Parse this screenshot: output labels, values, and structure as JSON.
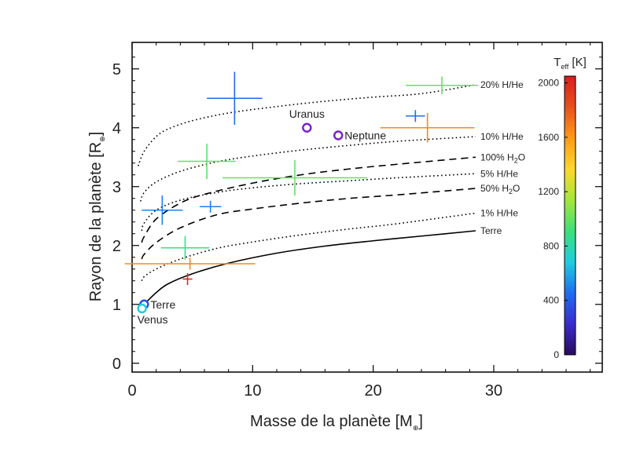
{
  "chart_data": {
    "type": "scatter",
    "xlabel": "Masse de la planète [M⊕]",
    "ylabel": "Rayon de la planète [R⊕]",
    "xlim": [
      0,
      39
    ],
    "ylim": [
      -0.15,
      5.45
    ],
    "x_ticks": [
      0,
      10,
      20,
      30
    ],
    "y_ticks": [
      0,
      1,
      2,
      3,
      4,
      5
    ],
    "colorbar": {
      "title": "T",
      "title_subscript": "eff",
      "title_unit": "[K]",
      "range": [
        0,
        2050
      ],
      "ticks": [
        0,
        400,
        800,
        1200,
        1600,
        2000
      ],
      "colors": [
        "#2a0a5a",
        "#3a2bd0",
        "#1d6ff0",
        "#1ecde0",
        "#3be07a",
        "#a5e63a",
        "#ffd82a",
        "#ff9a16",
        "#e8501c",
        "#d81e1e"
      ]
    },
    "curves": [
      {
        "name": "20% H/He",
        "style": "dotted",
        "label_parts": {
          "pre": "20% H/He"
        },
        "points": [
          [
            0.5,
            3.35
          ],
          [
            1,
            3.6
          ],
          [
            2,
            3.85
          ],
          [
            3,
            3.98
          ],
          [
            5,
            4.12
          ],
          [
            8,
            4.25
          ],
          [
            12,
            4.36
          ],
          [
            16,
            4.45
          ],
          [
            20,
            4.52
          ],
          [
            24,
            4.58
          ],
          [
            28.5,
            4.73
          ]
        ]
      },
      {
        "name": "10% H/He",
        "style": "dotted",
        "label_parts": {
          "pre": "10% H/He"
        },
        "points": [
          [
            0.7,
            2.75
          ],
          [
            1,
            2.9
          ],
          [
            2,
            3.08
          ],
          [
            4,
            3.26
          ],
          [
            7,
            3.42
          ],
          [
            10,
            3.52
          ],
          [
            14,
            3.62
          ],
          [
            18,
            3.7
          ],
          [
            22,
            3.77
          ],
          [
            28.5,
            3.85
          ]
        ]
      },
      {
        "name": "100% H2O",
        "style": "dashed",
        "label_parts": {
          "pre": "100% H",
          "sub": "2",
          "post": "O"
        },
        "points": [
          [
            0.8,
            2.05
          ],
          [
            1,
            2.15
          ],
          [
            2,
            2.45
          ],
          [
            4,
            2.72
          ],
          [
            6,
            2.87
          ],
          [
            10,
            3.06
          ],
          [
            14,
            3.2
          ],
          [
            18,
            3.3
          ],
          [
            22,
            3.38
          ],
          [
            28.5,
            3.5
          ]
        ]
      },
      {
        "name": "5% H/He",
        "style": "dotted",
        "label_parts": {
          "pre": "5% H/He"
        },
        "points": [
          [
            0.8,
            2.25
          ],
          [
            1,
            2.38
          ],
          [
            2,
            2.6
          ],
          [
            4,
            2.77
          ],
          [
            7,
            2.9
          ],
          [
            10,
            2.98
          ],
          [
            14,
            3.05
          ],
          [
            18,
            3.1
          ],
          [
            22,
            3.15
          ],
          [
            28.5,
            3.22
          ]
        ]
      },
      {
        "name": "50% H2O",
        "style": "dashed",
        "label_parts": {
          "pre": "50% H",
          "sub": "2",
          "post": "O"
        },
        "points": [
          [
            0.8,
            1.77
          ],
          [
            1,
            1.85
          ],
          [
            2,
            2.05
          ],
          [
            4,
            2.3
          ],
          [
            7,
            2.52
          ],
          [
            10,
            2.62
          ],
          [
            14,
            2.72
          ],
          [
            18,
            2.8
          ],
          [
            22,
            2.86
          ],
          [
            28.5,
            2.97
          ]
        ]
      },
      {
        "name": "1% H/He",
        "style": "dotted",
        "label_parts": {
          "pre": "1% H/He"
        },
        "points": [
          [
            0.8,
            1.4
          ],
          [
            1,
            1.47
          ],
          [
            2,
            1.6
          ],
          [
            4,
            1.77
          ],
          [
            7,
            1.95
          ],
          [
            10,
            2.06
          ],
          [
            14,
            2.18
          ],
          [
            18,
            2.28
          ],
          [
            22,
            2.37
          ],
          [
            28.5,
            2.55
          ]
        ]
      },
      {
        "name": "Terre",
        "style": "solid",
        "label_parts": {
          "pre": "Terre"
        },
        "points": [
          [
            1,
            1.0
          ],
          [
            2,
            1.2
          ],
          [
            3,
            1.35
          ],
          [
            5,
            1.52
          ],
          [
            8,
            1.7
          ],
          [
            12,
            1.87
          ],
          [
            16,
            1.99
          ],
          [
            20,
            2.08
          ],
          [
            24,
            2.16
          ],
          [
            28.5,
            2.25
          ]
        ]
      }
    ],
    "exoplanets": [
      {
        "x": 8.5,
        "y": 4.5,
        "xerr": 2.3,
        "yerr": 0.45,
        "teff": 450
      },
      {
        "x": 25.7,
        "y": 4.72,
        "xerr": 3.0,
        "yerr": 0.15,
        "teff": 1000
      },
      {
        "x": 23.5,
        "y": 4.2,
        "xerr": 0.8,
        "yerr": 0.1,
        "teff": 450
      },
      {
        "x": 24.5,
        "y": 4.0,
        "xerr": 3.9,
        "yerr": 0.25,
        "teff": 1650
      },
      {
        "x": 6.2,
        "y": 3.43,
        "xerr": 2.4,
        "yerr": 0.3,
        "teff": 980
      },
      {
        "x": 13.5,
        "y": 3.15,
        "xerr": 6.0,
        "yerr": 0.3,
        "teff": 1000
      },
      {
        "x": 2.5,
        "y": 2.6,
        "xerr": 1.7,
        "yerr": 0.25,
        "teff": 500
      },
      {
        "x": 6.5,
        "y": 2.66,
        "xerr": 0.9,
        "yerr": 0.1,
        "teff": 500
      },
      {
        "x": 4.4,
        "y": 1.96,
        "xerr": 2.0,
        "yerr": 0.2,
        "teff": 900
      },
      {
        "x": 4.8,
        "y": 1.69,
        "xerr": 5.4,
        "yerr": 0.1,
        "teff": 1650
      },
      {
        "x": 4.6,
        "y": 1.43,
        "xerr": 0.4,
        "yerr": 0.1,
        "teff": 2000
      }
    ],
    "solar_system": [
      {
        "name": "Uranus",
        "x": 14.5,
        "y": 4.0,
        "color": "#7a1fd0",
        "label_pos": "above"
      },
      {
        "name": "Neptune",
        "x": 17.1,
        "y": 3.87,
        "color": "#7a1fd0",
        "label_pos": "right"
      },
      {
        "name": "Terre",
        "x": 1.0,
        "y": 1.0,
        "color": "#1d4ff0",
        "label_pos": "right"
      },
      {
        "name": "Venus",
        "x": 0.82,
        "y": 0.93,
        "color": "#1ecde0",
        "label_pos": "below"
      }
    ]
  }
}
